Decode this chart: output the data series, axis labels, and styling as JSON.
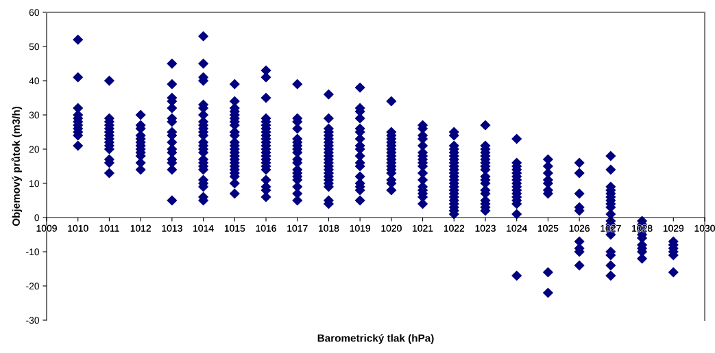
{
  "chart_data": {
    "type": "scatter",
    "xlabel": "Barometrický tlak (hPa)",
    "ylabel": "Objemový průtok (m3/h)",
    "xlim": [
      1009,
      1030
    ],
    "xticks": [
      1009,
      1010,
      1011,
      1012,
      1013,
      1014,
      1015,
      1016,
      1017,
      1018,
      1019,
      1020,
      1021,
      1022,
      1023,
      1024,
      1025,
      1026,
      1027,
      1028,
      1029,
      1030
    ],
    "ylim": [
      -30,
      60
    ],
    "yticks": [
      -30,
      -20,
      -10,
      0,
      10,
      20,
      30,
      40,
      50,
      60
    ],
    "grid": false,
    "marker": "diamond",
    "series": [
      {
        "color": "#000080",
        "x": [
          1010,
          1010,
          1010,
          1010,
          1010,
          1010,
          1010,
          1010,
          1010,
          1010,
          1010,
          1011,
          1011,
          1011,
          1011,
          1011,
          1011,
          1011,
          1011,
          1011,
          1011,
          1011,
          1011,
          1011,
          1011,
          1012,
          1012,
          1012,
          1012,
          1012,
          1012,
          1012,
          1012,
          1012,
          1012,
          1012,
          1012,
          1013,
          1013,
          1013,
          1013,
          1013,
          1013,
          1013,
          1013,
          1013,
          1013,
          1013,
          1013,
          1013,
          1013,
          1013,
          1013,
          1014,
          1014,
          1014,
          1014,
          1014,
          1014,
          1014,
          1014,
          1014,
          1014,
          1014,
          1014,
          1014,
          1014,
          1014,
          1014,
          1014,
          1014,
          1014,
          1014,
          1014,
          1014,
          1014,
          1014,
          1014,
          1015,
          1015,
          1015,
          1015,
          1015,
          1015,
          1015,
          1015,
          1015,
          1015,
          1015,
          1015,
          1015,
          1015,
          1015,
          1015,
          1015,
          1015,
          1015,
          1015,
          1015,
          1015,
          1015,
          1016,
          1016,
          1016,
          1016,
          1016,
          1016,
          1016,
          1016,
          1016,
          1016,
          1016,
          1016,
          1016,
          1016,
          1016,
          1016,
          1016,
          1016,
          1016,
          1016,
          1016,
          1016,
          1016,
          1017,
          1017,
          1017,
          1017,
          1017,
          1017,
          1017,
          1017,
          1017,
          1017,
          1017,
          1017,
          1017,
          1017,
          1017,
          1017,
          1017,
          1017,
          1018,
          1018,
          1018,
          1018,
          1018,
          1018,
          1018,
          1018,
          1018,
          1018,
          1018,
          1018,
          1018,
          1018,
          1018,
          1018,
          1018,
          1018,
          1018,
          1018,
          1018,
          1018,
          1019,
          1019,
          1019,
          1019,
          1019,
          1019,
          1019,
          1019,
          1019,
          1019,
          1019,
          1019,
          1019,
          1019,
          1019,
          1019,
          1019,
          1020,
          1020,
          1020,
          1020,
          1020,
          1020,
          1020,
          1020,
          1020,
          1020,
          1020,
          1020,
          1020,
          1020,
          1020,
          1020,
          1020,
          1021,
          1021,
          1021,
          1021,
          1021,
          1021,
          1021,
          1021,
          1021,
          1021,
          1021,
          1021,
          1021,
          1021,
          1021,
          1021,
          1021,
          1022,
          1022,
          1022,
          1022,
          1022,
          1022,
          1022,
          1022,
          1022,
          1022,
          1022,
          1022,
          1022,
          1022,
          1022,
          1022,
          1022,
          1022,
          1022,
          1022,
          1022,
          1022,
          1022,
          1023,
          1023,
          1023,
          1023,
          1023,
          1023,
          1023,
          1023,
          1023,
          1023,
          1023,
          1023,
          1023,
          1023,
          1023,
          1023,
          1023,
          1023,
          1024,
          1024,
          1024,
          1024,
          1024,
          1024,
          1024,
          1024,
          1024,
          1024,
          1024,
          1024,
          1024,
          1024,
          1024,
          1024,
          1025,
          1025,
          1025,
          1025,
          1025,
          1025,
          1025,
          1025,
          1025,
          1026,
          1026,
          1026,
          1026,
          1026,
          1026,
          1026,
          1026,
          1026,
          1027,
          1027,
          1027,
          1027,
          1027,
          1027,
          1027,
          1027,
          1027,
          1027,
          1027,
          1027,
          1027,
          1027,
          1027,
          1027,
          1027,
          1027,
          1027,
          1028,
          1028,
          1028,
          1028,
          1028,
          1028,
          1028,
          1028,
          1028,
          1028,
          1029,
          1029,
          1029,
          1029,
          1029,
          1029
        ],
        "values": [
          52,
          41,
          32,
          30,
          29,
          28,
          27,
          26,
          25,
          24,
          21,
          40,
          29,
          28,
          27,
          26,
          25,
          24,
          23,
          22,
          21,
          20,
          17,
          16,
          13,
          30,
          27,
          26,
          24,
          23,
          22,
          21,
          20,
          19,
          18,
          16,
          14,
          45,
          39,
          35,
          34,
          32,
          29,
          28,
          25,
          24,
          22,
          20,
          19,
          17,
          16,
          14,
          5,
          53,
          45,
          41,
          40,
          33,
          32,
          30,
          28,
          27,
          26,
          25,
          24,
          22,
          21,
          20,
          19,
          17,
          16,
          15,
          14,
          11,
          10,
          9,
          6,
          5,
          39,
          34,
          32,
          31,
          30,
          29,
          28,
          27,
          25,
          24,
          22,
          21,
          20,
          19,
          18,
          17,
          16,
          15,
          14,
          13,
          12,
          10,
          7,
          43,
          41,
          35,
          29,
          28,
          27,
          26,
          25,
          24,
          23,
          22,
          21,
          20,
          19,
          18,
          17,
          16,
          15,
          14,
          11,
          9,
          8,
          6,
          39,
          29,
          28,
          26,
          23,
          22,
          21,
          20,
          19,
          17,
          16,
          14,
          13,
          12,
          11,
          9,
          7,
          5,
          36,
          29,
          26,
          25,
          24,
          23,
          22,
          21,
          20,
          19,
          18,
          17,
          16,
          15,
          14,
          13,
          12,
          11,
          10,
          9,
          5,
          4,
          38,
          32,
          31,
          29,
          26,
          25,
          23,
          21,
          20,
          18,
          16,
          15,
          12,
          10,
          9,
          8,
          5,
          34,
          25,
          24,
          23,
          22,
          21,
          20,
          19,
          18,
          17,
          16,
          15,
          14,
          13,
          11,
          10,
          8,
          27,
          26,
          24,
          23,
          21,
          19,
          18,
          17,
          16,
          15,
          13,
          11,
          9,
          8,
          7,
          6,
          4,
          25,
          24,
          21,
          20,
          19,
          18,
          17,
          16,
          15,
          14,
          13,
          12,
          11,
          10,
          9,
          8,
          7,
          6,
          5,
          4,
          3,
          2,
          1,
          27,
          21,
          20,
          19,
          18,
          17,
          16,
          15,
          14,
          12,
          11,
          10,
          8,
          7,
          5,
          4,
          3,
          2,
          23,
          16,
          15,
          14,
          13,
          12,
          11,
          10,
          9,
          8,
          7,
          6,
          5,
          4,
          1,
          -17,
          17,
          15,
          13,
          11,
          10,
          8,
          7,
          -16,
          -22,
          16,
          13,
          7,
          3,
          2,
          -7,
          -9,
          -10,
          -14,
          18,
          14,
          9,
          8,
          7,
          6,
          5,
          4,
          3,
          1,
          -1,
          -2,
          -3,
          -4,
          -5,
          -10,
          -11,
          -14,
          -17,
          -1,
          -2,
          -3,
          -4,
          -5,
          -6,
          -8,
          -9,
          -10,
          -12,
          -7,
          -8,
          -9,
          -10,
          -11,
          -16
        ]
      }
    ]
  }
}
